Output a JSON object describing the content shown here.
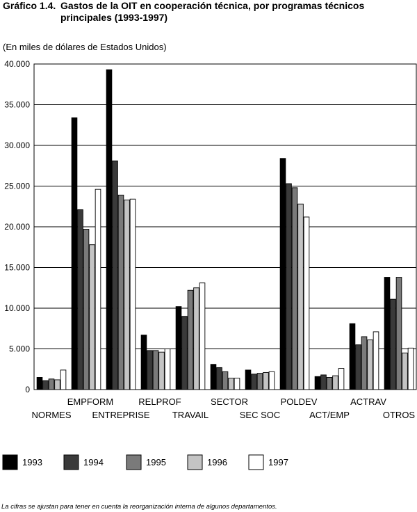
{
  "figure_number": "Gráfico 1.4.",
  "title": "Gastos de la OIT en cooperación técnica, por programas técnicos principales (1993-1997)",
  "units_note": "(En miles de dólares de Estados Unidos)",
  "footnote": "La cifras se ajustan para tener en cuenta la reorganización interna de algunos departamentos.",
  "chart_data": {
    "type": "bar",
    "title": "Gastos de la OIT en cooperación técnica, por programas técnicos principales (1993-1997)",
    "xlabel": "",
    "ylabel": "",
    "ylim": [
      0,
      40000
    ],
    "yticks": [
      0,
      5000,
      10000,
      15000,
      20000,
      25000,
      30000,
      35000,
      40000
    ],
    "ytick_labels": [
      "0",
      "5.000",
      "10.000",
      "15.000",
      "20.000",
      "25.000",
      "30.000",
      "35.000",
      "40.000"
    ],
    "grid": "horizontal",
    "legend_position": "bottom",
    "categories": [
      "NORMES",
      "EMPFORM",
      "ENTREPRISE",
      "RELPROF",
      "TRAVAIL",
      "SECTOR",
      "SEC SOC",
      "POLDEV",
      "ACT/EMP",
      "ACTRAV",
      "OTROS"
    ],
    "series": [
      {
        "name": "1993",
        "color": "#000000",
        "values": [
          1500,
          33400,
          39300,
          6700,
          10200,
          3100,
          2400,
          28400,
          1600,
          8100,
          13800
        ]
      },
      {
        "name": "1994",
        "color": "#3a3a3a",
        "values": [
          1100,
          22100,
          28100,
          4800,
          9000,
          2700,
          1900,
          25300,
          1800,
          5500,
          11100
        ]
      },
      {
        "name": "1995",
        "color": "#7a7a7a",
        "values": [
          1300,
          19700,
          23900,
          4800,
          12200,
          2200,
          2000,
          24800,
          1500,
          6500,
          13800
        ]
      },
      {
        "name": "1996",
        "color": "#c4c4c4",
        "values": [
          1200,
          17800,
          23300,
          4600,
          12500,
          1400,
          2100,
          22800,
          1700,
          6100,
          4500
        ]
      },
      {
        "name": "1997",
        "color": "#ffffff",
        "values": [
          2400,
          24600,
          23400,
          5000,
          13100,
          1400,
          2200,
          21200,
          2600,
          7100,
          5100
        ]
      }
    ],
    "category_label_rows": [
      "bottom",
      "top",
      "bottom",
      "top",
      "bottom",
      "top",
      "bottom",
      "top",
      "bottom",
      "top",
      "bottom"
    ]
  }
}
